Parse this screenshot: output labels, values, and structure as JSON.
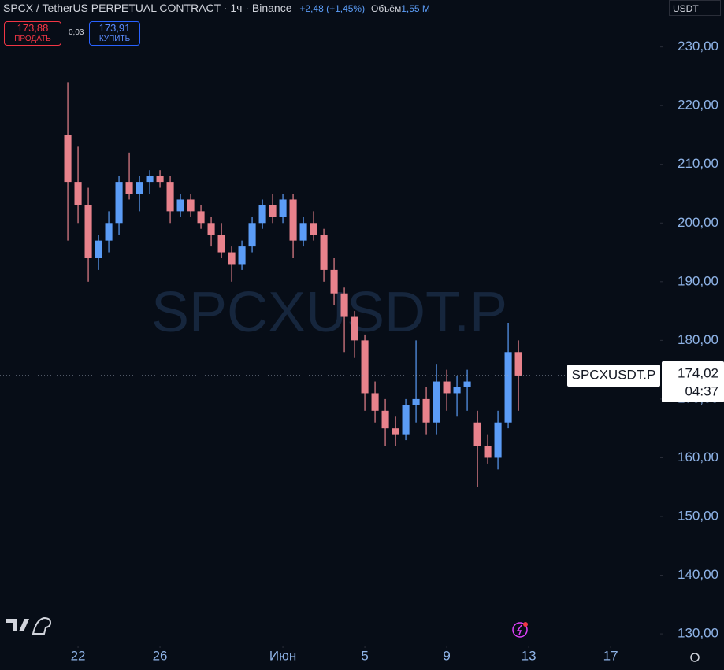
{
  "header": {
    "symbol_title": "SPCX / TetherUS PERPETUAL CONTRACT · 1ч · Binance",
    "change": "+2,48 (+1,45%)",
    "volume_label": "Объём",
    "volume": "1,55 M",
    "currency": "USDT"
  },
  "trade": {
    "sell_price": "173,88",
    "sell_label": "ПРОДАТЬ",
    "spread": "0,03",
    "buy_price": "173,91",
    "buy_label": "КУПИТЬ"
  },
  "chart_data": {
    "type": "candlestick",
    "watermark": "SPCXUSDT.P",
    "x": [
      21.5,
      22,
      22.5,
      23,
      23.5,
      24,
      24.5,
      25,
      25.5,
      26,
      26.5,
      27,
      27.5,
      28,
      28.5,
      29,
      29.5,
      30,
      30.5,
      31,
      31.5,
      32,
      32.5,
      33,
      33.5,
      34,
      34.5,
      35,
      35.5,
      36,
      36.5,
      37,
      37.5,
      38,
      38.5,
      39,
      39.5,
      40,
      40.5,
      41,
      41.5,
      42,
      42.5,
      43,
      43.5
    ],
    "open": [
      215,
      207,
      203,
      194,
      197,
      200,
      207,
      205,
      207,
      208,
      207,
      202,
      204,
      202,
      200,
      198,
      195,
      193,
      196,
      200,
      203,
      201,
      204,
      197,
      200,
      198,
      192,
      188,
      184,
      180,
      171,
      168,
      165,
      164,
      169,
      170,
      166,
      173,
      171,
      172,
      166,
      162,
      160,
      166,
      178
    ],
    "high": [
      224,
      213,
      206,
      198,
      202,
      208,
      212,
      208,
      209,
      209,
      208,
      205,
      205,
      203,
      201,
      200,
      196,
      197,
      201,
      204,
      205,
      205,
      205,
      201,
      202,
      199,
      194,
      189,
      185,
      181,
      173,
      170,
      167,
      170,
      180,
      172,
      176,
      175,
      174,
      175,
      168,
      164,
      168,
      183,
      180
    ],
    "low": [
      197,
      200,
      190,
      192,
      195,
      198,
      204,
      202,
      205,
      206,
      200,
      201,
      201,
      199,
      196,
      194,
      190,
      192,
      195,
      199,
      200,
      200,
      194,
      196,
      197,
      190,
      186,
      178,
      177,
      168,
      166,
      162,
      162,
      163,
      166,
      164,
      164,
      168,
      167,
      168,
      155,
      159,
      158,
      165,
      168
    ],
    "close": [
      207,
      203,
      194,
      197,
      200,
      207,
      205,
      207,
      208,
      207,
      202,
      204,
      202,
      200,
      198,
      195,
      193,
      196,
      200,
      203,
      201,
      204,
      197,
      200,
      198,
      192,
      188,
      184,
      180,
      171,
      168,
      165,
      164,
      169,
      170,
      166,
      173,
      171,
      172,
      173,
      162,
      160,
      166,
      178,
      174.02
    ],
    "up_color": "#5b9cf6",
    "down_color": "#e8828c",
    "xlim": [
      18.19,
      50.42
    ],
    "xticks": [
      22,
      26,
      {
        "value": 32,
        "label": "Июн"
      },
      {
        "value": 36,
        "label": "5"
      },
      {
        "value": 40,
        "label": "9"
      },
      {
        "value": 44,
        "label": "13"
      },
      {
        "value": 48,
        "label": "17"
      }
    ],
    "ylim": [
      128,
      238
    ],
    "yticks": [
      {
        "value": 130,
        "label": "130,00"
      },
      {
        "value": 140,
        "label": "140,00"
      },
      {
        "value": 150,
        "label": "150,00"
      },
      {
        "value": 160,
        "label": "160,00"
      },
      {
        "value": 170,
        "label": "170,00"
      },
      {
        "value": 180,
        "label": "180,00"
      },
      {
        "value": 190,
        "label": "190,00"
      },
      {
        "value": 200,
        "label": "200,00"
      },
      {
        "value": 210,
        "label": "210,00"
      },
      {
        "value": 220,
        "label": "220,00"
      },
      {
        "value": 230,
        "label": "230,00"
      }
    ],
    "last_price": {
      "value": 174.02,
      "label": "174,02"
    },
    "last_symbol": "SPCXUSDT.P",
    "countdown": "04:37"
  }
}
